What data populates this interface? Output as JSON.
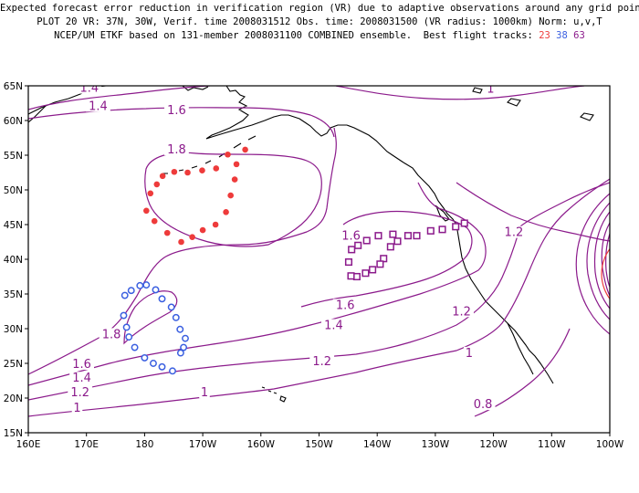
{
  "title": {
    "line1": "Expected forecast error reduction in verification region (VR) due to adaptive observations around any grid point.",
    "line2": "PLOT 20 VR: 37N, 30W, Verif. time 2008031512 Obs. time: 2008031500 (VR radius: 1000km) Norm: u,v,T",
    "line3_prefix": "NCEP/UM ETKF based on 131-member 2008031100 COMBINED ensemble.  Best flight tracks:",
    "tracks": [
      {
        "id": "23",
        "color": "#ee3b3b"
      },
      {
        "id": "38",
        "color": "#3a5fe0"
      },
      {
        "id": "63",
        "color": "#8b1a8b"
      }
    ]
  },
  "map": {
    "x_ticks": [
      "160E",
      "170E",
      "180",
      "170W",
      "160W",
      "150W",
      "140W",
      "130W",
      "120W",
      "110W",
      "100W"
    ],
    "y_ticks": [
      "15N",
      "20N",
      "25N",
      "30N",
      "35N",
      "40N",
      "45N",
      "50N",
      "55N",
      "60N",
      "65N"
    ],
    "lon_range_deg_east": [
      160,
      260
    ],
    "lat_range": [
      15,
      65
    ],
    "contour_color": "#8b1a8b",
    "vr_circle_color": "#ee3b3b"
  },
  "contour_labels": [
    {
      "text": "1.4",
      "lon": 170.5,
      "lat": 64.4
    },
    {
      "text": "1.4",
      "lon": 172,
      "lat": 61.8
    },
    {
      "text": "1.6",
      "lon": 185.5,
      "lat": 61.2
    },
    {
      "text": "1.8",
      "lon": 185.5,
      "lat": 55.5
    },
    {
      "text": "1",
      "lon": 239.5,
      "lat": 64.3
    },
    {
      "text": "1.2",
      "lon": 243.5,
      "lat": 43.6
    },
    {
      "text": "1.6",
      "lon": 215.5,
      "lat": 43.1
    },
    {
      "text": "1.6",
      "lon": 214.5,
      "lat": 33.1
    },
    {
      "text": "1.4",
      "lon": 212.5,
      "lat": 30.2
    },
    {
      "text": "1.2",
      "lon": 210.5,
      "lat": 25.0
    },
    {
      "text": "1.2",
      "lon": 234.5,
      "lat": 32.2
    },
    {
      "text": "1",
      "lon": 235.8,
      "lat": 26.2
    },
    {
      "text": "1",
      "lon": 190.3,
      "lat": 20.5
    },
    {
      "text": "0.8",
      "lon": 238.2,
      "lat": 18.8
    },
    {
      "text": "1.8",
      "lon": 174.3,
      "lat": 28.9
    },
    {
      "text": "1.6",
      "lon": 169.2,
      "lat": 24.6
    },
    {
      "text": "1.4",
      "lon": 169.2,
      "lat": 22.6
    },
    {
      "text": "1.2",
      "lon": 168.9,
      "lat": 20.5
    },
    {
      "text": "1",
      "lon": 168.4,
      "lat": 18.3
    }
  ],
  "flight_tracks": [
    {
      "id": "23",
      "color": "#ee3b3b",
      "marker": "filled-circle",
      "points": [
        [
          197.3,
          55.8
        ],
        [
          195.8,
          53.7
        ],
        [
          195.5,
          51.5
        ],
        [
          194.8,
          49.2
        ],
        [
          194.0,
          46.8
        ],
        [
          192.2,
          45.0
        ],
        [
          190.0,
          44.2
        ],
        [
          188.2,
          43.2
        ],
        [
          186.3,
          42.5
        ],
        [
          183.9,
          43.8
        ],
        [
          181.7,
          45.5
        ],
        [
          180.3,
          47.0
        ],
        [
          181.0,
          49.5
        ],
        [
          182.1,
          50.8
        ],
        [
          183.1,
          52.0
        ],
        [
          185.1,
          52.6
        ],
        [
          187.4,
          52.5
        ],
        [
          189.9,
          52.8
        ],
        [
          192.3,
          53.1
        ],
        [
          194.3,
          55.1
        ]
      ]
    },
    {
      "id": "38",
      "color": "#3a5fe0",
      "marker": "open-circle",
      "points": [
        [
          176.4,
          31.9
        ],
        [
          176.9,
          30.2
        ],
        [
          177.3,
          28.8
        ],
        [
          178.3,
          27.3
        ],
        [
          180.0,
          25.8
        ],
        [
          181.5,
          25.0
        ],
        [
          183.0,
          24.5
        ],
        [
          184.8,
          23.9
        ],
        [
          186.2,
          26.5
        ],
        [
          186.7,
          27.3
        ],
        [
          187.0,
          28.6
        ],
        [
          186.1,
          29.9
        ],
        [
          185.4,
          31.6
        ],
        [
          184.6,
          33.1
        ],
        [
          183.0,
          34.3
        ],
        [
          181.9,
          35.6
        ],
        [
          180.3,
          36.3
        ],
        [
          179.2,
          36.2
        ],
        [
          177.7,
          35.5
        ],
        [
          176.6,
          34.8
        ]
      ]
    },
    {
      "id": "63",
      "color": "#8b1a8b",
      "marker": "open-square",
      "points": [
        [
          235.0,
          45.2
        ],
        [
          233.5,
          44.7
        ],
        [
          231.2,
          44.3
        ],
        [
          229.2,
          44.1
        ],
        [
          226.8,
          43.4
        ],
        [
          225.3,
          43.4
        ],
        [
          223.5,
          42.6
        ],
        [
          222.3,
          41.8
        ],
        [
          221.1,
          40.1
        ],
        [
          220.5,
          39.3
        ],
        [
          219.2,
          38.5
        ],
        [
          218.0,
          38.0
        ],
        [
          216.5,
          37.5
        ],
        [
          215.5,
          37.6
        ],
        [
          215.1,
          39.6
        ],
        [
          215.6,
          41.4
        ],
        [
          216.7,
          42.0
        ],
        [
          218.2,
          42.7
        ],
        [
          220.2,
          43.4
        ],
        [
          222.7,
          43.6
        ]
      ]
    }
  ]
}
